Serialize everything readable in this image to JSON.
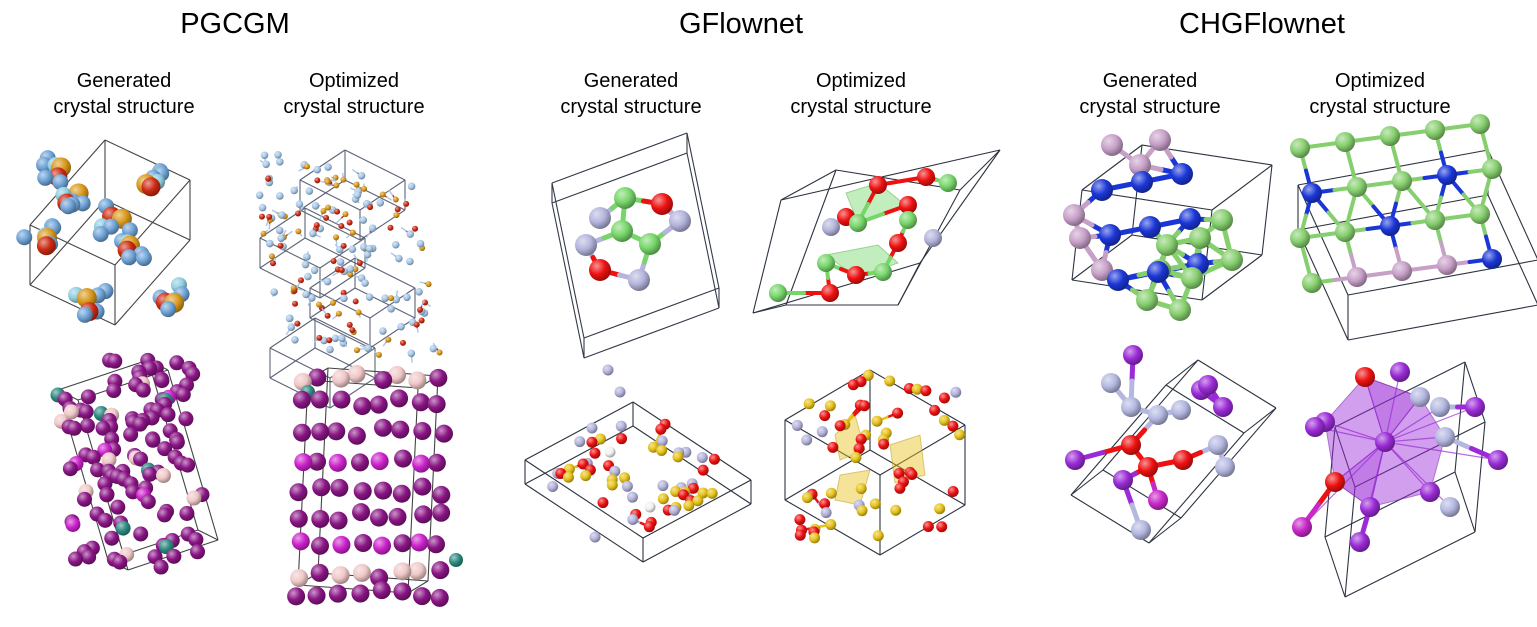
{
  "methods": [
    {
      "title": "PGCGM",
      "generated_label": [
        "Generated",
        "crystal structure"
      ],
      "optimized_label": [
        "Optimized",
        "crystal structure"
      ]
    },
    {
      "title": "GFlownet",
      "generated_label": [
        "Generated",
        "crystal structure"
      ],
      "optimized_label": [
        "Optimized",
        "crystal structure"
      ]
    },
    {
      "title": "CHGFlownet",
      "generated_label": [
        "Generated",
        "crystal structure"
      ],
      "optimized_label": [
        "Optimized",
        "crystal structure"
      ]
    }
  ],
  "atom_colors": {
    "pgcgm_row1": [
      "#6fa3d6",
      "#d9981a",
      "#cc2a12",
      "#8fcfe0",
      "#a8c8e8"
    ],
    "pgcgm_row2": [
      "#8a1585",
      "#f0c8c8",
      "#2d8a80",
      "#cc22cc",
      "#6d0c6a"
    ],
    "gflownet_row1": [
      "#77d66a",
      "#ee1111",
      "#b4b4dc"
    ],
    "gflownet_row2": [
      "#ee1111",
      "#e6c21a",
      "#b4b4dc",
      "#f2f2f2"
    ],
    "chgflownet_row1": [
      "#1b36d6",
      "#86cf6e",
      "#c7a0c8"
    ],
    "chgflownet_row2": [
      "#9a2bd6",
      "#ee1111",
      "#b4b8e0",
      "#c828c8"
    ]
  },
  "icons": [
    "crystal-structure-render"
  ]
}
